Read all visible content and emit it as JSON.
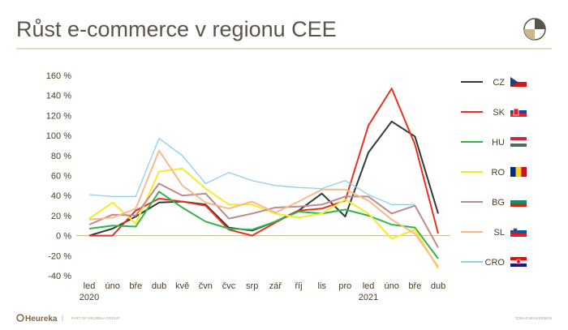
{
  "header": {
    "title": "Růst e-commerce v regionu CEE",
    "logo_icon": "pie-logo-icon"
  },
  "footer": {
    "brand": "Heureka",
    "separator": "|",
    "tagline": "PART OF HEUREKA GROUP",
    "author": "TOMÁŠ BRAVERMAN"
  },
  "colors": {
    "title": "#5b5448",
    "rule": "#c9b98a",
    "axis_text": "#4a3d22",
    "zero_line": "#c9b98a"
  },
  "chart_data": {
    "type": "line",
    "title": "Růst e-commerce v regionu CEE",
    "x": [
      "led",
      "úno",
      "bře",
      "dub",
      "kvě",
      "čvn",
      "čvc",
      "srp",
      "zář",
      "říj",
      "lis",
      "pro",
      "led",
      "úno",
      "bře",
      "dub"
    ],
    "year_labels": [
      {
        "index": 0,
        "label": "2020"
      },
      {
        "index": 12,
        "label": "2021"
      }
    ],
    "yticks": [
      "160 %",
      "140 %",
      "120 %",
      "100 %",
      "80 %",
      "60 %",
      "40 %",
      "20 %",
      "0 %",
      "-20 %",
      "-40 %"
    ],
    "ylim": [
      -40,
      160
    ],
    "grid": false,
    "legend": "right",
    "series": [
      {
        "name": "CZ",
        "color": "#2e3b36",
        "flag": "cz",
        "values": [
          0,
          7,
          19,
          33,
          34,
          31,
          8,
          5,
          14,
          25,
          42,
          19,
          83,
          114,
          99,
          22
        ]
      },
      {
        "name": "SK",
        "color": "#e8321e",
        "flag": "sk",
        "values": [
          0,
          0,
          25,
          37,
          34,
          30,
          6,
          0,
          13,
          25,
          27,
          35,
          110,
          147,
          91,
          2
        ]
      },
      {
        "name": "HU",
        "color": "#2fb54a",
        "flag": "hu",
        "values": [
          7,
          10,
          9,
          44,
          28,
          14,
          7,
          6,
          14,
          24,
          22,
          26,
          20,
          11,
          8,
          -23
        ]
      },
      {
        "name": "RO",
        "color": "#f7ea2a",
        "flag": "ro",
        "values": [
          17,
          33,
          12,
          64,
          67,
          47,
          31,
          31,
          22,
          18,
          22,
          36,
          22,
          -3,
          6,
          -33
        ]
      },
      {
        "name": "BG",
        "color": "#c08a8a",
        "flag": "bg",
        "values": [
          11,
          21,
          20,
          52,
          40,
          42,
          17,
          22,
          28,
          29,
          31,
          39,
          39,
          22,
          30,
          -12
        ]
      },
      {
        "name": "SL",
        "color": "#f9b98a",
        "flag": "sl",
        "values": [
          16,
          18,
          27,
          85,
          50,
          33,
          27,
          34,
          23,
          34,
          46,
          46,
          35,
          16,
          2,
          -31
        ]
      },
      {
        "name": "CRO",
        "color": "#8fd0e8",
        "flag": "cro",
        "values": [
          41,
          39,
          39,
          97,
          80,
          52,
          63,
          55,
          50,
          48,
          47,
          55,
          41,
          31,
          31,
          null
        ]
      }
    ]
  }
}
